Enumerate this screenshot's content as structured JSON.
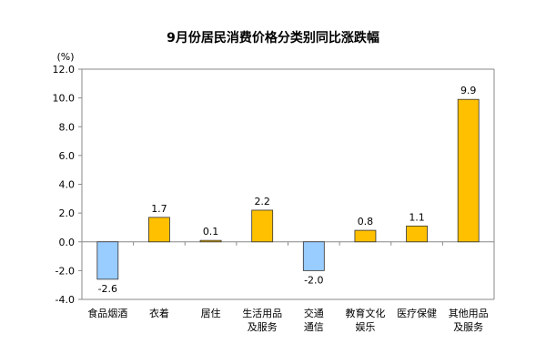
{
  "chart_data": {
    "type": "bar",
    "title": "9月份居民消费价格分类别同比涨跌幅",
    "unit": "(%)",
    "categories": [
      [
        "食品烟酒"
      ],
      [
        "衣着"
      ],
      [
        "居住"
      ],
      [
        "生活用品",
        "及服务"
      ],
      [
        "交通",
        "通信"
      ],
      [
        "教育文化",
        "娱乐"
      ],
      [
        "医疗保健"
      ],
      [
        "其他用品",
        "及服务"
      ]
    ],
    "values": [
      -2.6,
      1.7,
      0.1,
      2.2,
      -2.0,
      0.8,
      1.1,
      9.9
    ],
    "value_labels": [
      "-2.6",
      "1.7",
      "0.1",
      "2.2",
      "-2.0",
      "0.8",
      "1.1",
      "9.9"
    ],
    "ylim": [
      -4.0,
      12.0
    ],
    "yticks": [
      "12.0",
      "10.0",
      "8.0",
      "6.0",
      "4.0",
      "2.0",
      "0.0",
      "-2.0",
      "-4.0"
    ],
    "ytick_values": [
      12,
      10,
      8,
      6,
      4,
      2,
      0,
      -2,
      -4
    ],
    "grid": false,
    "colors": {
      "positive": "#FFC000",
      "negative": "#99CCFF",
      "bar_border": "#333333",
      "axis": "#888888"
    }
  }
}
